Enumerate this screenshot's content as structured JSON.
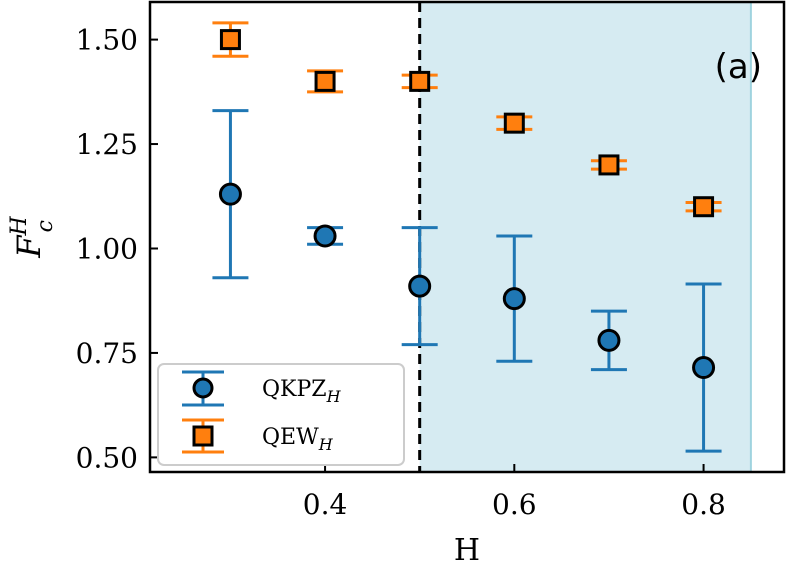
{
  "chart_data": {
    "type": "scatter",
    "panel_label": "(a)",
    "xlabel": "H",
    "ylabel": "F",
    "ylabel_sup": "H",
    "ylabel_sub": "c",
    "xlim": [
      0.215,
      0.885
    ],
    "ylim": [
      0.465,
      1.59
    ],
    "xticks": [
      0.4,
      0.6,
      0.8
    ],
    "xtick_labels": [
      "0.4",
      "0.6",
      "0.8"
    ],
    "yticks": [
      0.5,
      0.75,
      1.0,
      1.25,
      1.5
    ],
    "ytick_labels": [
      "0.50",
      "0.75",
      "1.00",
      "1.25",
      "1.50"
    ],
    "shaded_region": {
      "x_from": 0.5,
      "x_to": 0.85,
      "color": "#d6ebf2"
    },
    "vertical_line": {
      "x": 0.5,
      "style": "dashed",
      "color": "#000000"
    },
    "grid": false,
    "legend_position": "lower-left",
    "series": [
      {
        "name": "QKPZ",
        "name_sub": "H",
        "marker": "circle",
        "color": "#1f77b4",
        "points": [
          {
            "x": 0.3,
            "y": 1.13,
            "ylow": 0.93,
            "yhigh": 1.33
          },
          {
            "x": 0.4,
            "y": 1.03,
            "ylow": 1.01,
            "yhigh": 1.05
          },
          {
            "x": 0.5,
            "y": 0.91,
            "ylow": 0.77,
            "yhigh": 1.05
          },
          {
            "x": 0.6,
            "y": 0.88,
            "ylow": 0.73,
            "yhigh": 1.03
          },
          {
            "x": 0.7,
            "y": 0.78,
            "ylow": 0.71,
            "yhigh": 0.85
          },
          {
            "x": 0.8,
            "y": 0.715,
            "ylow": 0.515,
            "yhigh": 0.915
          }
        ]
      },
      {
        "name": "QEW",
        "name_sub": "H",
        "marker": "square",
        "color": "#ff7f0e",
        "points": [
          {
            "x": 0.3,
            "y": 1.5,
            "ylow": 1.46,
            "yhigh": 1.54
          },
          {
            "x": 0.4,
            "y": 1.4,
            "ylow": 1.375,
            "yhigh": 1.425
          },
          {
            "x": 0.5,
            "y": 1.4,
            "ylow": 1.385,
            "yhigh": 1.415
          },
          {
            "x": 0.6,
            "y": 1.3,
            "ylow": 1.285,
            "yhigh": 1.315
          },
          {
            "x": 0.7,
            "y": 1.2,
            "ylow": 1.19,
            "yhigh": 1.21
          },
          {
            "x": 0.8,
            "y": 1.1,
            "ylow": 1.09,
            "yhigh": 1.11
          }
        ]
      }
    ]
  }
}
